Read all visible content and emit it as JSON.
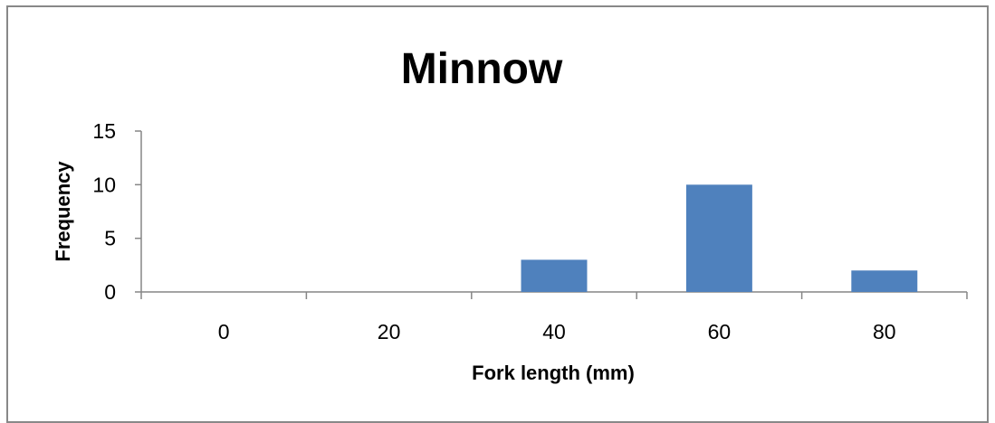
{
  "chart_data": {
    "type": "bar",
    "title": "Minnow",
    "xlabel": "Fork length (mm)",
    "ylabel": "Frequency",
    "categories": [
      "0",
      "20",
      "40",
      "60",
      "80"
    ],
    "values": [
      0,
      0,
      3,
      10,
      2
    ],
    "yticks": [
      "0",
      "5",
      "10",
      "15"
    ],
    "ylim": [
      0,
      15
    ],
    "grid": false,
    "legend": "none",
    "bar_color": "#4f81bd",
    "axis_color": "#868686",
    "border_color": "#888888"
  }
}
